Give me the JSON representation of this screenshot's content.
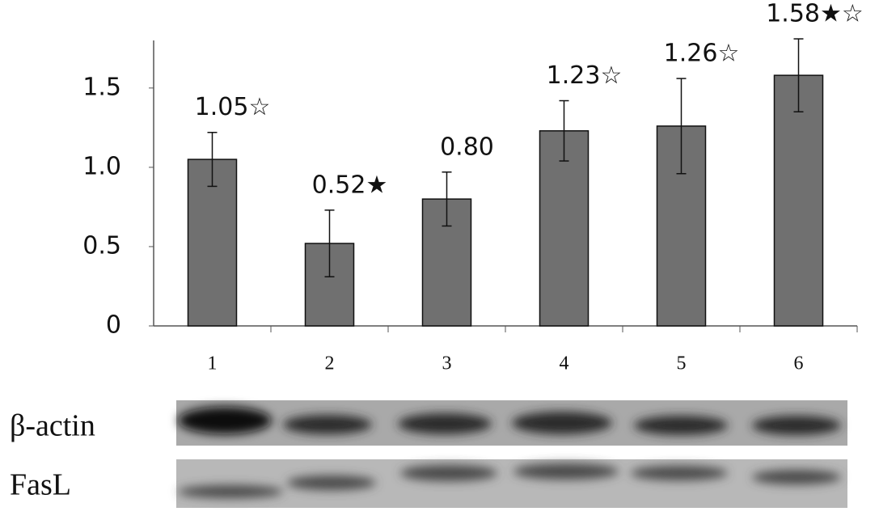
{
  "chart_data": {
    "type": "bar",
    "categories": [
      "1",
      "2",
      "3",
      "4",
      "5",
      "6"
    ],
    "values": [
      1.05,
      0.52,
      0.8,
      1.23,
      1.26,
      1.58
    ],
    "value_labels": [
      "1.05☆",
      "0.52★",
      "0.80",
      "1.23☆",
      "1.26☆",
      "1.58★☆"
    ],
    "errors": [
      0.17,
      0.21,
      0.17,
      0.19,
      0.3,
      0.23
    ],
    "color": "#707070",
    "ylim": [
      0,
      1.8
    ],
    "yticks": [
      0,
      0.5,
      {
        "value": 1,
        "label": "1.0"
      },
      1.5
    ],
    "grid": false
  },
  "blots": {
    "labels": [
      "β-actin",
      "FasL"
    ]
  }
}
